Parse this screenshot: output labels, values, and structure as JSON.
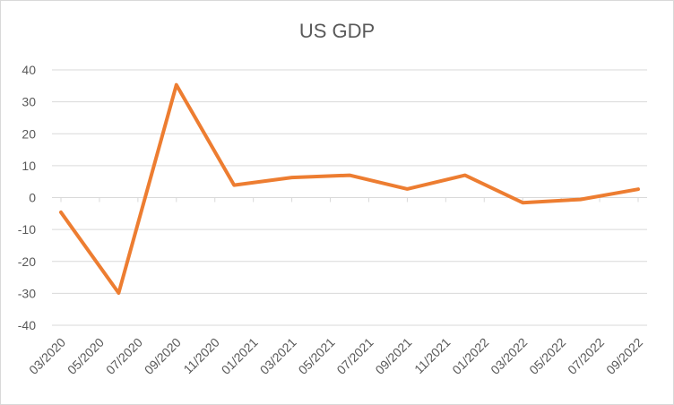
{
  "chart_data": {
    "type": "line",
    "title": "US GDP",
    "xlabel": "",
    "ylabel": "",
    "ylim": [
      -40,
      40
    ],
    "yticks": [
      -40,
      -30,
      -20,
      -10,
      0,
      10,
      20,
      30,
      40
    ],
    "grid": true,
    "legend": "none",
    "color": "#ed7d31",
    "x": [
      "03/2020",
      "05/2020",
      "07/2020",
      "09/2020",
      "11/2020",
      "01/2021",
      "03/2021",
      "05/2021",
      "07/2021",
      "09/2021",
      "11/2021",
      "01/2022",
      "03/2022",
      "05/2022",
      "07/2022",
      "09/2022"
    ],
    "points": [
      {
        "x": "03/2020",
        "y": -4.6
      },
      {
        "x": "06/2020",
        "y": -29.9
      },
      {
        "x": "09/2020",
        "y": 35.3
      },
      {
        "x": "12/2020",
        "y": 3.9
      },
      {
        "x": "03/2021",
        "y": 6.3
      },
      {
        "x": "06/2021",
        "y": 7.0
      },
      {
        "x": "09/2021",
        "y": 2.7
      },
      {
        "x": "12/2021",
        "y": 7.0
      },
      {
        "x": "03/2022",
        "y": -1.6
      },
      {
        "x": "06/2022",
        "y": -0.6
      },
      {
        "x": "09/2022",
        "y": 2.6
      }
    ]
  }
}
